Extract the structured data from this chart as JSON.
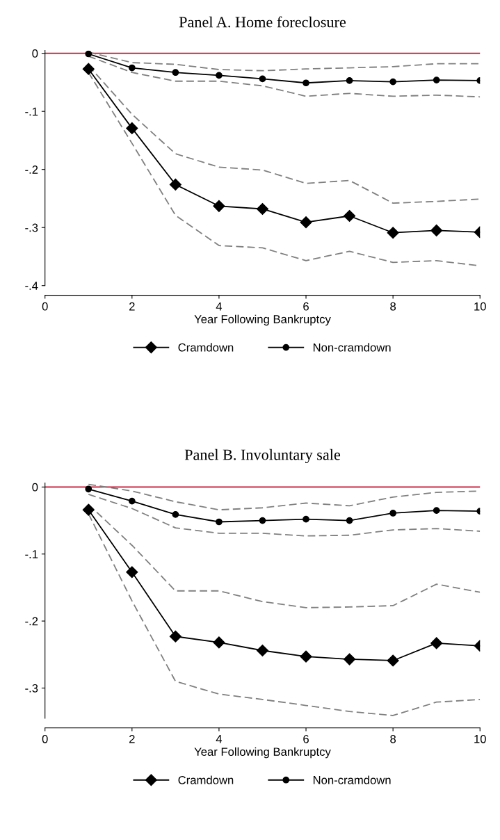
{
  "chart_data": [
    {
      "type": "line",
      "title": "Panel A. Home foreclosure",
      "xlabel": "Year Following Bankruptcy",
      "x": [
        1,
        2,
        3,
        4,
        5,
        6,
        7,
        8,
        9,
        10
      ],
      "xlim": [
        0,
        10
      ],
      "xticks": [
        0,
        2,
        4,
        6,
        8,
        10
      ],
      "ylim": [
        -0.4,
        0.005
      ],
      "yticks": [
        0,
        {
          "value": -0.1,
          "label": "-.1"
        },
        {
          "value": -0.2,
          "label": "-.2"
        },
        {
          "value": -0.3,
          "label": "-.3"
        },
        {
          "value": -0.4,
          "label": "-.4"
        }
      ],
      "grid": false,
      "legend": "bottom",
      "ref_lines": [
        {
          "axis": "y",
          "value": 0,
          "color": "#c8102e"
        }
      ],
      "series": [
        {
          "name": "Cramdown",
          "color": "#000000",
          "marker": "diamond",
          "values": [
            -0.027,
            -0.129,
            -0.226,
            -0.263,
            -0.268,
            -0.291,
            -0.28,
            -0.309,
            -0.305,
            -0.308
          ]
        },
        {
          "name": "Non-cramdown",
          "color": "#000000",
          "marker": "circle",
          "values": [
            -0.001,
            -0.025,
            -0.033,
            -0.038,
            -0.044,
            -0.051,
            -0.047,
            -0.049,
            -0.046,
            -0.047
          ]
        },
        {
          "color": "#808080",
          "line_style": "dashed",
          "marker": "none",
          "values": [
            -0.021,
            -0.105,
            -0.173,
            -0.196,
            -0.201,
            -0.224,
            -0.219,
            -0.258,
            -0.255,
            -0.251
          ]
        },
        {
          "color": "#808080",
          "line_style": "dashed",
          "marker": "none",
          "values": [
            -0.033,
            -0.155,
            -0.279,
            -0.331,
            -0.335,
            -0.357,
            -0.341,
            -0.36,
            -0.357,
            -0.366
          ]
        },
        {
          "color": "#808080",
          "line_style": "dashed",
          "marker": "none",
          "values": [
            0.002,
            -0.016,
            -0.019,
            -0.028,
            -0.03,
            -0.027,
            -0.025,
            -0.023,
            -0.018,
            -0.018
          ]
        },
        {
          "color": "#808080",
          "line_style": "dashed",
          "marker": "none",
          "values": [
            -0.005,
            -0.033,
            -0.048,
            -0.048,
            -0.056,
            -0.074,
            -0.069,
            -0.074,
            -0.072,
            -0.075
          ]
        }
      ]
    },
    {
      "type": "line",
      "title": "Panel B. Involuntary sale",
      "xlabel": "Year Following Bankruptcy",
      "x": [
        1,
        2,
        3,
        4,
        5,
        6,
        7,
        8,
        9,
        10
      ],
      "xlim": [
        0,
        10
      ],
      "xticks": [
        0,
        2,
        4,
        6,
        8,
        10
      ],
      "ylim": [
        -0.345,
        0.006
      ],
      "yticks": [
        0,
        {
          "value": -0.1,
          "label": "-.1"
        },
        {
          "value": -0.2,
          "label": "-.2"
        },
        {
          "value": -0.3,
          "label": "-.3"
        }
      ],
      "grid": false,
      "legend": "bottom",
      "ref_lines": [
        {
          "axis": "y",
          "value": 0,
          "color": "#c8102e"
        }
      ],
      "series": [
        {
          "name": "Cramdown",
          "color": "#000000",
          "marker": "diamond",
          "values": [
            -0.034,
            -0.127,
            -0.223,
            -0.232,
            -0.244,
            -0.253,
            -0.257,
            -0.259,
            -0.233,
            -0.237
          ]
        },
        {
          "name": "Non-cramdown",
          "color": "#000000",
          "marker": "circle",
          "values": [
            -0.003,
            -0.021,
            -0.041,
            -0.052,
            -0.05,
            -0.048,
            -0.05,
            -0.039,
            -0.035,
            -0.036
          ]
        },
        {
          "color": "#808080",
          "line_style": "dashed",
          "marker": "none",
          "values": [
            -0.026,
            -0.087,
            -0.155,
            -0.155,
            -0.171,
            -0.18,
            -0.179,
            -0.177,
            -0.145,
            -0.157
          ]
        },
        {
          "color": "#808080",
          "line_style": "dashed",
          "marker": "none",
          "values": [
            -0.04,
            -0.17,
            -0.29,
            -0.309,
            -0.317,
            -0.326,
            -0.335,
            -0.341,
            -0.321,
            -0.317
          ]
        },
        {
          "color": "#808080",
          "line_style": "dashed",
          "marker": "none",
          "values": [
            0.004,
            -0.006,
            -0.022,
            -0.034,
            -0.031,
            -0.024,
            -0.028,
            -0.015,
            -0.008,
            -0.006
          ]
        },
        {
          "color": "#808080",
          "line_style": "dashed",
          "marker": "none",
          "values": [
            -0.011,
            -0.032,
            -0.061,
            -0.069,
            -0.069,
            -0.073,
            -0.072,
            -0.064,
            -0.062,
            -0.066
          ]
        }
      ]
    }
  ]
}
